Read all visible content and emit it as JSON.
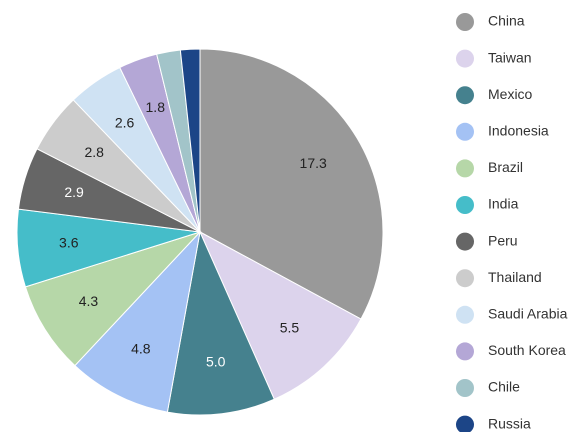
{
  "chart_data": {
    "type": "pie",
    "categories": [
      "China",
      "Taiwan",
      "Mexico",
      "Indonesia",
      "Brazil",
      "India",
      "Peru",
      "Thailand",
      "Saudi Arabia",
      "South Korea",
      "Chile",
      "Russia"
    ],
    "values": [
      17.3,
      5.5,
      5,
      4.8,
      4.3,
      3.6,
      2.9,
      2.8,
      2.6,
      1.8,
      1.1,
      0.9
    ],
    "value_labels": [
      "17.3",
      "5.5",
      "5.0",
      "4.8",
      "4.3",
      "3.6",
      "2.9",
      "2.8",
      "2.6",
      "1.8",
      null,
      null
    ],
    "colors": [
      "#999999",
      "#dcd3ec",
      "#45818e",
      "#a4c2f4",
      "#b6d7a8",
      "#45bdc9",
      "#666666",
      "#cccccc",
      "#cfe2f3",
      "#b4a7d6",
      "#a2c4c9",
      "#1c4587"
    ],
    "legend": "right"
  }
}
